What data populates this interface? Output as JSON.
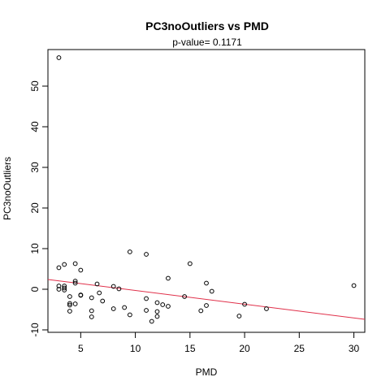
{
  "chart_data": {
    "type": "scatter",
    "title": "PC3noOutliers  vs  PMD",
    "subtitle": "p-value= 0.1171",
    "xlabel": "PMD",
    "ylabel": "PC3noOutliers",
    "xlim": [
      2.0,
      31.0
    ],
    "ylim": [
      -10.6,
      59.0
    ],
    "x_ticks": [
      5,
      10,
      15,
      20,
      25,
      30
    ],
    "y_ticks": [
      -10,
      0,
      10,
      20,
      30,
      40,
      50
    ],
    "points": [
      {
        "x": 3.0,
        "y": 57.0
      },
      {
        "x": 3.0,
        "y": 5.3
      },
      {
        "x": 3.0,
        "y": 0.8
      },
      {
        "x": 3.0,
        "y": 0.0
      },
      {
        "x": 3.5,
        "y": 6.1
      },
      {
        "x": 3.5,
        "y": 0.8
      },
      {
        "x": 3.5,
        "y": 0.3
      },
      {
        "x": 3.5,
        "y": -0.2
      },
      {
        "x": 4.0,
        "y": -1.8
      },
      {
        "x": 4.0,
        "y": -3.5
      },
      {
        "x": 4.0,
        "y": -3.9
      },
      {
        "x": 4.0,
        "y": -5.4
      },
      {
        "x": 4.5,
        "y": 6.3
      },
      {
        "x": 4.5,
        "y": 2.0
      },
      {
        "x": 4.5,
        "y": 1.5
      },
      {
        "x": 4.5,
        "y": -3.6
      },
      {
        "x": 5.0,
        "y": 4.7
      },
      {
        "x": 5.0,
        "y": -1.4
      },
      {
        "x": 5.0,
        "y": -1.5
      },
      {
        "x": 6.0,
        "y": -2.1
      },
      {
        "x": 6.0,
        "y": -5.3
      },
      {
        "x": 6.0,
        "y": -6.8
      },
      {
        "x": 6.5,
        "y": 1.3
      },
      {
        "x": 6.7,
        "y": -0.9
      },
      {
        "x": 7.0,
        "y": -2.9
      },
      {
        "x": 8.0,
        "y": 0.7
      },
      {
        "x": 8.0,
        "y": -4.8
      },
      {
        "x": 8.5,
        "y": 0.1
      },
      {
        "x": 9.0,
        "y": -4.5
      },
      {
        "x": 9.5,
        "y": 9.2
      },
      {
        "x": 9.5,
        "y": -6.3
      },
      {
        "x": 11.0,
        "y": 8.6
      },
      {
        "x": 11.0,
        "y": -2.3
      },
      {
        "x": 11.0,
        "y": -5.2
      },
      {
        "x": 11.5,
        "y": -7.9
      },
      {
        "x": 12.0,
        "y": -3.3
      },
      {
        "x": 12.0,
        "y": -5.5
      },
      {
        "x": 12.0,
        "y": -6.7
      },
      {
        "x": 12.5,
        "y": -3.8
      },
      {
        "x": 13.0,
        "y": 2.7
      },
      {
        "x": 13.0,
        "y": -4.2
      },
      {
        "x": 14.5,
        "y": -1.8
      },
      {
        "x": 15.0,
        "y": 6.3
      },
      {
        "x": 16.0,
        "y": -5.3
      },
      {
        "x": 16.5,
        "y": 1.5
      },
      {
        "x": 16.5,
        "y": -4.0
      },
      {
        "x": 17.0,
        "y": -0.5
      },
      {
        "x": 19.5,
        "y": -6.6
      },
      {
        "x": 20.0,
        "y": -3.7
      },
      {
        "x": 22.0,
        "y": -4.8
      },
      {
        "x": 30.0,
        "y": 0.9
      }
    ],
    "regression_line": {
      "x1": 2.0,
      "y1": 2.4,
      "x2": 31.0,
      "y2": -7.4
    },
    "point_color": "#000000",
    "line_color": "#e0304a",
    "grid": false,
    "legend": "none"
  }
}
